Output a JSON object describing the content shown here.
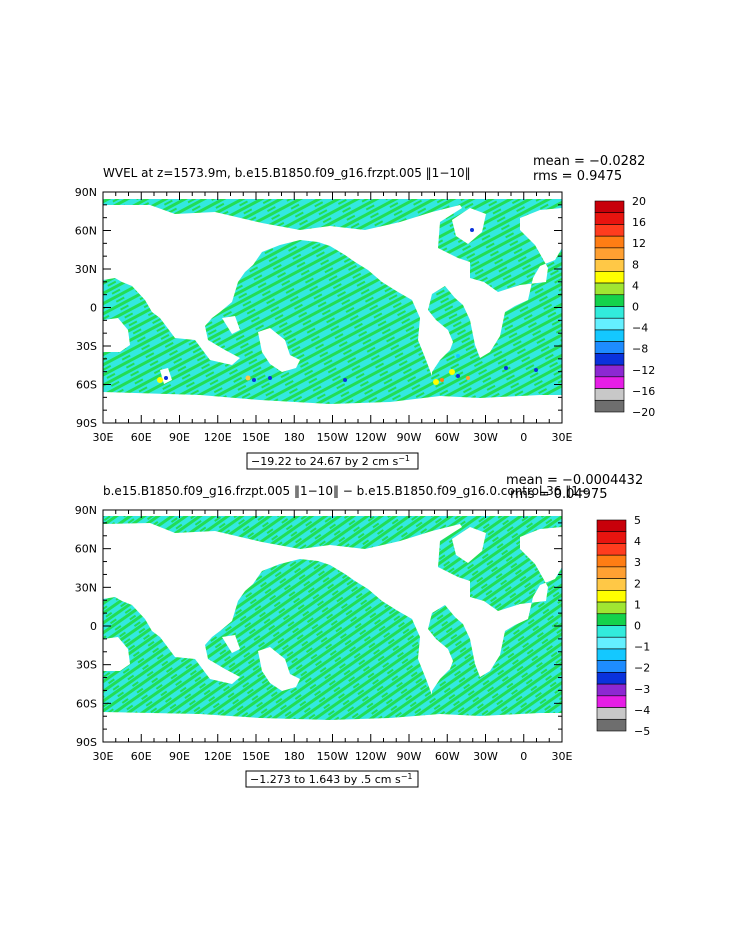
{
  "colors": {
    "ocean_base": "#33e8e0",
    "ocean_streak": "#22dd55",
    "land": "#ffffff",
    "axis": "#000000"
  },
  "x_tick_labels": [
    "30E",
    "60E",
    "90E",
    "120E",
    "150E",
    "180",
    "150W",
    "120W",
    "90W",
    "60W",
    "30W",
    "0",
    "30E"
  ],
  "y_tick_labels": [
    "90N",
    "60N",
    "30N",
    "0",
    "30S",
    "60S",
    "90S"
  ],
  "chart_data": [
    {
      "type": "heatmap",
      "title": "WVEL at z=1573.9m, b.e15.B1850.f09_g16.frzpt.005 ‖1−10‖",
      "stats": [
        "mean = −0.0282",
        "rms = 0.9475"
      ],
      "contour_info": "−19.22 to 24.67 by 2 cm s",
      "contour_unit_exp": "−1",
      "colorbar_levels": [
        20,
        16,
        12,
        8,
        4,
        0,
        -4,
        -8,
        -12,
        -16,
        -20
      ],
      "colorbar_labels": [
        "20",
        "16",
        "12",
        "8",
        "4",
        "0",
        "−4",
        "−8",
        "−12",
        "−16",
        "−20"
      ],
      "colorbar_colors": [
        "#c8000a",
        "#e8140f",
        "#ff3c1e",
        "#ff7d14",
        "#ffa032",
        "#ffc846",
        "#ffff00",
        "#a0e632",
        "#14d24b",
        "#32ebdc",
        "#64f0ff",
        "#14c8ff",
        "#1e8cff",
        "#0a32dc",
        "#8c28d2",
        "#e61ee6",
        "#c8c8c8",
        "#6e6e6e"
      ],
      "xlim": [
        "30E",
        "30E"
      ],
      "ylim": [
        "90S",
        "90N"
      ]
    },
    {
      "type": "heatmap",
      "title": "b.e15.B1850.f09_g16.frzpt.005 ‖1−10‖ − b.e15.B1850.f09_g16.0.control.36 ‖1−",
      "stats": [
        "mean = −0.0004432",
        "rms = 0.04975"
      ],
      "contour_info": "−1.273 to 1.643 by .5 cm s",
      "contour_unit_exp": "−1",
      "colorbar_levels": [
        5,
        4,
        3,
        2,
        1,
        0,
        -1,
        -2,
        -3,
        -4,
        -5
      ],
      "colorbar_labels": [
        "5",
        "4",
        "3",
        "2",
        "1",
        "0",
        "−1",
        "−2",
        "−3",
        "−4",
        "−5"
      ],
      "colorbar_colors": [
        "#c8000a",
        "#e8140f",
        "#ff3c1e",
        "#ff7d14",
        "#ffa032",
        "#ffc846",
        "#ffff00",
        "#a0e632",
        "#14d24b",
        "#32ebdc",
        "#64f0ff",
        "#14c8ff",
        "#1e8cff",
        "#0a32dc",
        "#8c28d2",
        "#e61ee6",
        "#c8c8c8",
        "#6e6e6e"
      ],
      "xlim": [
        "30E",
        "30E"
      ],
      "ylim": [
        "90S",
        "90N"
      ]
    }
  ]
}
